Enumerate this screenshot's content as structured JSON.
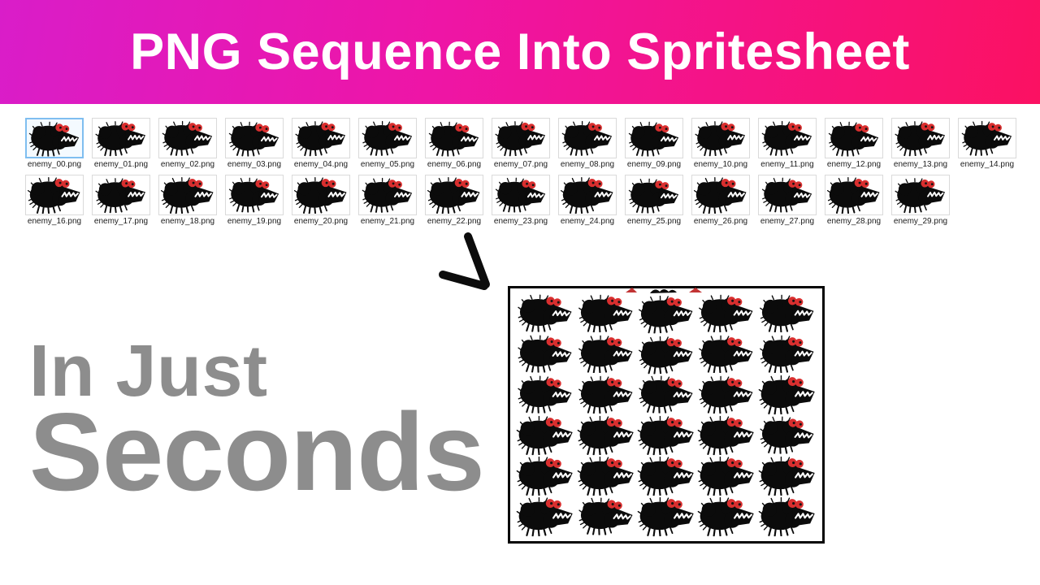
{
  "banner": {
    "title": "PNG Sequence Into Spritesheet",
    "gradient_left_color": "#d91dc9",
    "gradient_right_color": "#fb1162",
    "text_color": "#ffffff"
  },
  "file_grid": {
    "row1": [
      "enemy_00.png",
      "enemy_01.png",
      "enemy_02.png",
      "enemy_03.png",
      "enemy_04.png",
      "enemy_05.png",
      "enemy_06.png",
      "enemy_07.png",
      "enemy_08.png",
      "enemy_09.png",
      "enemy_10.png",
      "enemy_11.png",
      "enemy_12.png",
      "enemy_13.png",
      "enemy_14.png"
    ],
    "row2": [
      "enemy_16.png",
      "enemy_17.png",
      "enemy_18.png",
      "enemy_19.png",
      "enemy_20.png",
      "enemy_21.png",
      "enemy_22.png",
      "enemy_23.png",
      "enemy_24.png",
      "enemy_25.png",
      "enemy_26.png",
      "enemy_27.png",
      "enemy_28.png",
      "enemy_29.png"
    ],
    "selected_file": "enemy_00.png",
    "selection_border_color": "#7fbef0"
  },
  "arrow": {
    "description": "hand-drawn arrowhead pointing down-right at spritesheet",
    "color": "#0c0c0c"
  },
  "tagline": {
    "line1": "In Just",
    "line2": "Seconds",
    "color": "#8d8d8d"
  },
  "spritesheet": {
    "columns": 5,
    "rows": 6,
    "sprite_count": 30,
    "border_color": "#050505",
    "background_color": "#ffffff"
  },
  "sprite": {
    "name": "enemy-monster",
    "body_color": "#0b0b0b",
    "eye_color": "#d92f2f",
    "teeth_color": "#ffffff"
  }
}
